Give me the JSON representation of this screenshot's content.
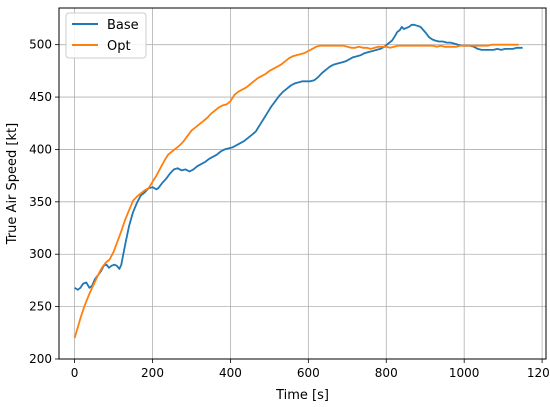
{
  "chart_data": {
    "type": "line",
    "xlabel": "Time [s]",
    "ylabel": "True Air Speed [kt]",
    "xlim": [
      -40,
      1210
    ],
    "ylim": [
      200,
      535
    ],
    "xticks": [
      0,
      200,
      400,
      600,
      800,
      1000,
      1200
    ],
    "yticks": [
      200,
      250,
      300,
      350,
      400,
      450,
      500
    ],
    "grid": true,
    "legend_position": "top-left",
    "series": [
      {
        "name": "Base",
        "color": "#1f77b4",
        "points": [
          [
            0,
            268
          ],
          [
            8,
            266
          ],
          [
            15,
            268
          ],
          [
            22,
            272
          ],
          [
            30,
            273
          ],
          [
            38,
            268
          ],
          [
            45,
            270
          ],
          [
            52,
            276
          ],
          [
            60,
            280
          ],
          [
            68,
            284
          ],
          [
            75,
            289
          ],
          [
            82,
            290
          ],
          [
            88,
            287
          ],
          [
            95,
            289
          ],
          [
            102,
            290
          ],
          [
            108,
            289
          ],
          [
            115,
            286
          ],
          [
            120,
            290
          ],
          [
            125,
            300
          ],
          [
            132,
            313
          ],
          [
            140,
            327
          ],
          [
            150,
            340
          ],
          [
            160,
            349
          ],
          [
            170,
            356
          ],
          [
            180,
            359
          ],
          [
            190,
            363
          ],
          [
            200,
            364
          ],
          [
            210,
            362
          ],
          [
            215,
            363
          ],
          [
            225,
            368
          ],
          [
            235,
            372
          ],
          [
            245,
            377
          ],
          [
            255,
            381
          ],
          [
            265,
            382
          ],
          [
            275,
            380
          ],
          [
            285,
            381
          ],
          [
            295,
            379
          ],
          [
            305,
            381
          ],
          [
            315,
            384
          ],
          [
            325,
            386
          ],
          [
            335,
            388
          ],
          [
            345,
            391
          ],
          [
            355,
            393
          ],
          [
            365,
            395
          ],
          [
            375,
            398
          ],
          [
            385,
            400
          ],
          [
            395,
            401
          ],
          [
            405,
            402
          ],
          [
            415,
            404
          ],
          [
            425,
            406
          ],
          [
            435,
            408
          ],
          [
            445,
            411
          ],
          [
            455,
            414
          ],
          [
            465,
            417
          ],
          [
            475,
            423
          ],
          [
            485,
            429
          ],
          [
            495,
            435
          ],
          [
            505,
            441
          ],
          [
            515,
            446
          ],
          [
            525,
            451
          ],
          [
            535,
            455
          ],
          [
            545,
            458
          ],
          [
            555,
            461
          ],
          [
            565,
            463
          ],
          [
            575,
            464
          ],
          [
            585,
            465
          ],
          [
            595,
            465
          ],
          [
            605,
            465
          ],
          [
            615,
            466
          ],
          [
            625,
            469
          ],
          [
            635,
            473
          ],
          [
            645,
            476
          ],
          [
            655,
            479
          ],
          [
            665,
            481
          ],
          [
            675,
            482
          ],
          [
            685,
            483
          ],
          [
            695,
            484
          ],
          [
            705,
            486
          ],
          [
            715,
            488
          ],
          [
            725,
            489
          ],
          [
            735,
            490
          ],
          [
            745,
            492
          ],
          [
            755,
            493
          ],
          [
            765,
            494
          ],
          [
            775,
            495
          ],
          [
            785,
            496
          ],
          [
            795,
            498
          ],
          [
            805,
            501
          ],
          [
            815,
            504
          ],
          [
            822,
            508
          ],
          [
            828,
            512
          ],
          [
            835,
            514
          ],
          [
            840,
            517
          ],
          [
            845,
            515
          ],
          [
            852,
            516
          ],
          [
            858,
            517
          ],
          [
            865,
            519
          ],
          [
            872,
            519
          ],
          [
            880,
            518
          ],
          [
            888,
            517
          ],
          [
            895,
            514
          ],
          [
            902,
            511
          ],
          [
            910,
            507
          ],
          [
            918,
            505
          ],
          [
            925,
            504
          ],
          [
            935,
            503
          ],
          [
            945,
            503
          ],
          [
            955,
            502
          ],
          [
            965,
            502
          ],
          [
            975,
            501
          ],
          [
            985,
            500
          ],
          [
            995,
            499
          ],
          [
            1005,
            499
          ],
          [
            1015,
            499
          ],
          [
            1025,
            498
          ],
          [
            1035,
            496
          ],
          [
            1045,
            495
          ],
          [
            1055,
            495
          ],
          [
            1065,
            495
          ],
          [
            1075,
            495
          ],
          [
            1085,
            496
          ],
          [
            1095,
            495
          ],
          [
            1105,
            496
          ],
          [
            1115,
            496
          ],
          [
            1125,
            496
          ],
          [
            1135,
            497
          ],
          [
            1145,
            497
          ],
          [
            1150,
            497
          ]
        ]
      },
      {
        "name": "Opt",
        "color": "#ff7f0e",
        "points": [
          [
            0,
            220
          ],
          [
            8,
            230
          ],
          [
            16,
            240
          ],
          [
            24,
            249
          ],
          [
            32,
            257
          ],
          [
            40,
            264
          ],
          [
            50,
            272
          ],
          [
            60,
            280
          ],
          [
            70,
            287
          ],
          [
            80,
            292
          ],
          [
            90,
            295
          ],
          [
            100,
            302
          ],
          [
            110,
            312
          ],
          [
            120,
            322
          ],
          [
            130,
            333
          ],
          [
            140,
            342
          ],
          [
            150,
            351
          ],
          [
            160,
            355
          ],
          [
            170,
            358
          ],
          [
            180,
            361
          ],
          [
            190,
            363
          ],
          [
            200,
            369
          ],
          [
            210,
            375
          ],
          [
            220,
            382
          ],
          [
            230,
            389
          ],
          [
            240,
            395
          ],
          [
            250,
            398
          ],
          [
            260,
            401
          ],
          [
            270,
            404
          ],
          [
            280,
            408
          ],
          [
            290,
            413
          ],
          [
            300,
            418
          ],
          [
            310,
            421
          ],
          [
            320,
            424
          ],
          [
            330,
            427
          ],
          [
            340,
            430
          ],
          [
            350,
            434
          ],
          [
            360,
            437
          ],
          [
            370,
            440
          ],
          [
            380,
            442
          ],
          [
            390,
            443
          ],
          [
            400,
            446
          ],
          [
            410,
            452
          ],
          [
            420,
            455
          ],
          [
            430,
            457
          ],
          [
            440,
            459
          ],
          [
            450,
            462
          ],
          [
            460,
            465
          ],
          [
            470,
            468
          ],
          [
            480,
            470
          ],
          [
            490,
            472
          ],
          [
            500,
            475
          ],
          [
            510,
            477
          ],
          [
            520,
            479
          ],
          [
            530,
            481
          ],
          [
            540,
            484
          ],
          [
            550,
            487
          ],
          [
            560,
            489
          ],
          [
            570,
            490
          ],
          [
            580,
            491
          ],
          [
            590,
            492
          ],
          [
            600,
            494
          ],
          [
            610,
            496
          ],
          [
            620,
            498
          ],
          [
            630,
            499
          ],
          [
            640,
            499
          ],
          [
            650,
            499
          ],
          [
            660,
            499
          ],
          [
            670,
            499
          ],
          [
            680,
            499
          ],
          [
            690,
            499
          ],
          [
            700,
            498
          ],
          [
            710,
            497
          ],
          [
            720,
            497
          ],
          [
            730,
            498
          ],
          [
            740,
            497
          ],
          [
            750,
            497
          ],
          [
            760,
            496
          ],
          [
            770,
            497
          ],
          [
            780,
            498
          ],
          [
            790,
            498
          ],
          [
            800,
            498
          ],
          [
            810,
            497
          ],
          [
            820,
            498
          ],
          [
            830,
            499
          ],
          [
            840,
            499
          ],
          [
            850,
            499
          ],
          [
            860,
            499
          ],
          [
            870,
            499
          ],
          [
            880,
            499
          ],
          [
            890,
            499
          ],
          [
            900,
            499
          ],
          [
            910,
            499
          ],
          [
            920,
            499
          ],
          [
            930,
            498
          ],
          [
            940,
            499
          ],
          [
            950,
            498
          ],
          [
            960,
            498
          ],
          [
            970,
            498
          ],
          [
            980,
            498
          ],
          [
            990,
            499
          ],
          [
            1000,
            499
          ],
          [
            1010,
            499
          ],
          [
            1020,
            499
          ],
          [
            1030,
            499
          ],
          [
            1040,
            499
          ],
          [
            1050,
            499
          ],
          [
            1060,
            499
          ],
          [
            1070,
            500
          ],
          [
            1080,
            500
          ],
          [
            1090,
            500
          ],
          [
            1100,
            500
          ],
          [
            1110,
            500
          ],
          [
            1120,
            500
          ],
          [
            1130,
            500
          ],
          [
            1140,
            500
          ]
        ]
      }
    ]
  }
}
